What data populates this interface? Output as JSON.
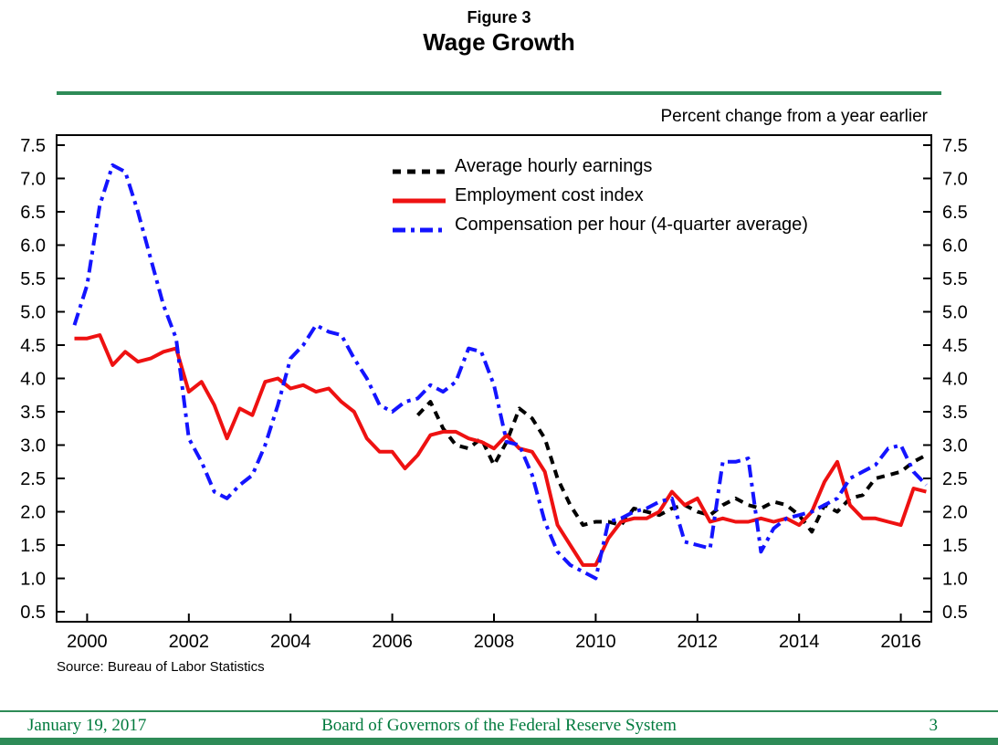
{
  "header": {
    "figure_label": "Figure 3",
    "title": "Wage Growth"
  },
  "units_label": "Percent change from a year earlier",
  "source": "Source:  Bureau of Labor Statistics",
  "footer": {
    "date": "January 19, 2017",
    "center": "Board of Governors of the Federal Reserve System",
    "page_number": "3"
  },
  "colors": {
    "accent_green": "#2E8B57",
    "footer_text_green": "#007A3D",
    "axis_black": "#000000"
  },
  "chart_data": {
    "type": "line",
    "title": "Wage Growth",
    "units": "Percent change from a year earlier",
    "grid": false,
    "legend_position": "upper center inside plot",
    "xlim": [
      1999.4,
      2016.6
    ],
    "ylim": [
      0.35,
      7.65
    ],
    "xticks": [
      2000,
      2002,
      2004,
      2006,
      2008,
      2010,
      2012,
      2014,
      2016
    ],
    "yticks": [
      0.5,
      1.0,
      1.5,
      2.0,
      2.5,
      3.0,
      3.5,
      4.0,
      4.5,
      5.0,
      5.5,
      6.0,
      6.5,
      7.0,
      7.5
    ],
    "y_axis_both_sides": true,
    "series": [
      {
        "name": "Average hourly earnings",
        "color": "#000000",
        "style": "dashed",
        "x": [
          2006.5,
          2006.75,
          2007,
          2007.25,
          2007.5,
          2007.75,
          2008,
          2008.25,
          2008.5,
          2008.75,
          2009,
          2009.25,
          2009.5,
          2009.75,
          2010,
          2010.25,
          2010.5,
          2010.75,
          2011,
          2011.25,
          2011.5,
          2011.75,
          2012,
          2012.25,
          2012.5,
          2012.75,
          2013,
          2013.25,
          2013.5,
          2013.75,
          2014,
          2014.25,
          2014.5,
          2014.75,
          2015,
          2015.25,
          2015.5,
          2015.75,
          2016,
          2016.25,
          2016.5
        ],
        "values": [
          3.45,
          3.65,
          3.25,
          3.0,
          2.95,
          3.1,
          2.7,
          3.05,
          3.55,
          3.4,
          3.1,
          2.5,
          2.1,
          1.8,
          1.85,
          1.85,
          1.8,
          2.05,
          2.0,
          1.95,
          2.05,
          2.1,
          2.0,
          1.95,
          2.1,
          2.2,
          2.1,
          2.05,
          2.15,
          2.1,
          1.95,
          1.7,
          2.1,
          2.0,
          2.2,
          2.25,
          2.5,
          2.55,
          2.6,
          2.75,
          2.85
        ]
      },
      {
        "name": "Employment cost index",
        "color": "#EE1111",
        "style": "solid",
        "x": [
          1999.75,
          2000,
          2000.25,
          2000.5,
          2000.75,
          2001,
          2001.25,
          2001.5,
          2001.75,
          2002,
          2002.25,
          2002.5,
          2002.75,
          2003,
          2003.25,
          2003.5,
          2003.75,
          2004,
          2004.25,
          2004.5,
          2004.75,
          2005,
          2005.25,
          2005.5,
          2005.75,
          2006,
          2006.25,
          2006.5,
          2006.75,
          2007,
          2007.25,
          2007.5,
          2007.75,
          2008,
          2008.25,
          2008.5,
          2008.75,
          2009,
          2009.25,
          2009.5,
          2009.75,
          2010,
          2010.25,
          2010.5,
          2010.75,
          2011,
          2011.25,
          2011.5,
          2011.75,
          2012,
          2012.25,
          2012.5,
          2012.75,
          2013,
          2013.25,
          2013.5,
          2013.75,
          2014,
          2014.25,
          2014.5,
          2014.75,
          2015,
          2015.25,
          2015.5,
          2015.75,
          2016,
          2016.25,
          2016.5
        ],
        "values": [
          4.6,
          4.6,
          4.65,
          4.2,
          4.4,
          4.25,
          4.3,
          4.4,
          4.45,
          3.8,
          3.95,
          3.6,
          3.1,
          3.55,
          3.45,
          3.95,
          4.0,
          3.85,
          3.9,
          3.8,
          3.85,
          3.65,
          3.5,
          3.1,
          2.9,
          2.9,
          2.65,
          2.85,
          3.15,
          3.2,
          3.2,
          3.1,
          3.05,
          2.95,
          3.15,
          2.95,
          2.9,
          2.6,
          1.8,
          1.5,
          1.2,
          1.2,
          1.6,
          1.85,
          1.9,
          1.9,
          2.0,
          2.3,
          2.1,
          2.2,
          1.85,
          1.9,
          1.85,
          1.85,
          1.9,
          1.85,
          1.9,
          1.8,
          2.0,
          2.45,
          2.75,
          2.1,
          1.9,
          1.9,
          1.85,
          1.8,
          2.35,
          2.3
        ]
      },
      {
        "name": "Compensation per hour (4-quarter average)",
        "color": "#1414FF",
        "style": "dashdot",
        "x": [
          1999.75,
          2000,
          2000.25,
          2000.5,
          2000.75,
          2001,
          2001.25,
          2001.5,
          2001.75,
          2002,
          2002.25,
          2002.5,
          2002.75,
          2003,
          2003.25,
          2003.5,
          2003.75,
          2004,
          2004.25,
          2004.5,
          2004.75,
          2005,
          2005.25,
          2005.5,
          2005.75,
          2006,
          2006.25,
          2006.5,
          2006.75,
          2007,
          2007.25,
          2007.5,
          2007.75,
          2008,
          2008.25,
          2008.5,
          2008.75,
          2009,
          2009.25,
          2009.5,
          2009.75,
          2010,
          2010.25,
          2010.5,
          2010.75,
          2011,
          2011.25,
          2011.5,
          2011.75,
          2012,
          2012.25,
          2012.5,
          2012.75,
          2013,
          2013.25,
          2013.5,
          2013.75,
          2014,
          2014.25,
          2014.5,
          2014.75,
          2015,
          2015.25,
          2015.5,
          2015.75,
          2016,
          2016.25,
          2016.5
        ],
        "values": [
          4.8,
          5.4,
          6.6,
          7.2,
          7.1,
          6.5,
          5.8,
          5.1,
          4.6,
          3.1,
          2.75,
          2.3,
          2.2,
          2.4,
          2.55,
          3.0,
          3.6,
          4.3,
          4.5,
          4.8,
          4.7,
          4.65,
          4.3,
          4.0,
          3.6,
          3.5,
          3.65,
          3.7,
          3.9,
          3.8,
          3.95,
          4.45,
          4.4,
          3.9,
          3.05,
          3.0,
          2.55,
          1.85,
          1.4,
          1.2,
          1.1,
          1.0,
          1.85,
          1.9,
          2.0,
          2.05,
          2.15,
          2.2,
          1.55,
          1.5,
          1.45,
          2.75,
          2.75,
          2.8,
          1.4,
          1.75,
          1.9,
          1.95,
          2.0,
          2.1,
          2.2,
          2.5,
          2.6,
          2.7,
          2.95,
          3.0,
          2.6,
          2.4
        ]
      }
    ]
  }
}
